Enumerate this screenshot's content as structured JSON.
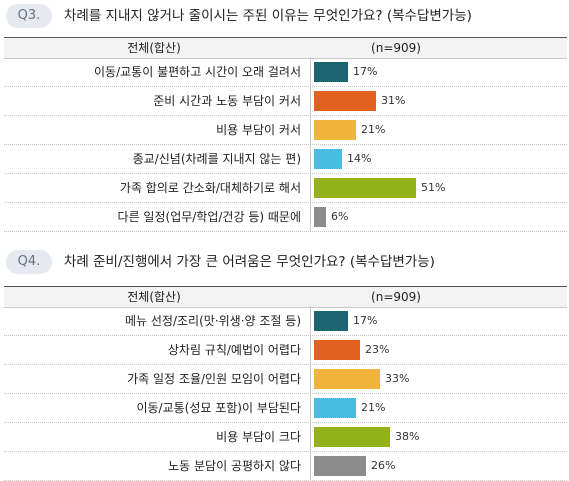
{
  "chart_data": [
    {
      "type": "bar",
      "question_no": "Q3.",
      "title": "차례를 지내지 않거나 줄이시는 주된 이유는 무엇인가요? (복수답변가능)",
      "header_label": "전체(합산)",
      "header_n": "(n=909)",
      "categories": [
        "이동/교통이 불편하고 시간이 오래 걸려서",
        "준비 시간과 노동 부담이 커서",
        "비용 부담이 커서",
        "종교/신념(차례를 지내지 않는 편)",
        "가족 합의로 간소화/대체하기로 해서",
        "다른 일정(업무/학업/건강 등) 때문에"
      ],
      "values": [
        17,
        31,
        21,
        14,
        51,
        6
      ],
      "value_labels": [
        "17%",
        "31%",
        "21%",
        "14%",
        "51%",
        "6%"
      ],
      "colors": [
        "#1b6470",
        "#e2611f",
        "#f1b43a",
        "#49bde0",
        "#93b21a",
        "#8c8c8c"
      ],
      "unit": "%",
      "xlim": [
        0,
        100
      ]
    },
    {
      "type": "bar",
      "question_no": "Q4.",
      "title": "차례 준비/진행에서 가장 큰 어려움은 무엇인가요? (복수답변가능)",
      "header_label": "전체(합산)",
      "header_n": "(n=909)",
      "categories": [
        "메뉴 선정/조리(맛·위생·양 조절 등)",
        "상차림 규칙/예법이 어렵다",
        "가족 일정 조율/인원 모임이 어렵다",
        "이동/교통(성묘 포함)이 부담된다",
        "비용 부담이 크다",
        "노동 분담이 공평하지 않다"
      ],
      "values": [
        17,
        23,
        33,
        21,
        38,
        26
      ],
      "value_labels": [
        "17%",
        "23%",
        "33%",
        "21%",
        "38%",
        "26%"
      ],
      "colors": [
        "#1b6470",
        "#e2611f",
        "#f1b43a",
        "#49bde0",
        "#93b21a",
        "#8c8c8c"
      ],
      "unit": "%",
      "xlim": [
        0,
        100
      ]
    }
  ]
}
